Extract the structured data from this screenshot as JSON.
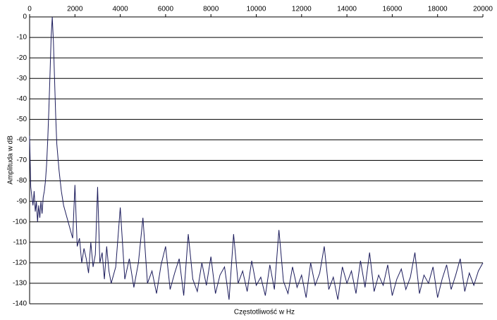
{
  "chart_data": {
    "type": "line",
    "x_label": "Częstotliwość w Hz",
    "y_label": "Amplituda w dB",
    "xlim": [
      0,
      20000
    ],
    "ylim": [
      -140,
      0
    ],
    "xticks": [
      0,
      2000,
      4000,
      6000,
      8000,
      10000,
      12000,
      14000,
      16000,
      18000,
      20000
    ],
    "yticks": [
      0,
      -10,
      -20,
      -30,
      -40,
      -50,
      -60,
      -70,
      -80,
      -90,
      -100,
      -110,
      -120,
      -130,
      -140
    ],
    "grid": true,
    "series": [
      {
        "color": "#1c1c5c",
        "x": [
          0,
          50,
          100,
          150,
          200,
          250,
          300,
          350,
          400,
          450,
          500,
          550,
          600,
          650,
          700,
          750,
          800,
          850,
          900,
          950,
          1000,
          1050,
          1100,
          1150,
          1200,
          1300,
          1400,
          1500,
          1600,
          1700,
          1800,
          1900,
          2000,
          2100,
          2200,
          2300,
          2400,
          2500,
          2600,
          2700,
          2800,
          2900,
          3000,
          3100,
          3200,
          3300,
          3400,
          3500,
          3600,
          3800,
          4000,
          4200,
          4400,
          4600,
          4800,
          5000,
          5200,
          5400,
          5600,
          5800,
          6000,
          6200,
          6400,
          6600,
          6800,
          7000,
          7200,
          7400,
          7600,
          7800,
          8000,
          8200,
          8400,
          8600,
          8800,
          9000,
          9200,
          9400,
          9600,
          9800,
          10000,
          10200,
          10400,
          10600,
          10800,
          11000,
          11200,
          11400,
          11600,
          11800,
          12000,
          12200,
          12400,
          12600,
          12800,
          13000,
          13200,
          13400,
          13600,
          13800,
          14000,
          14200,
          14400,
          14600,
          14800,
          15000,
          15200,
          15400,
          15600,
          15800,
          16000,
          16200,
          16400,
          16600,
          16800,
          17000,
          17200,
          17400,
          17600,
          17800,
          18000,
          18200,
          18400,
          18600,
          18800,
          19000,
          19200,
          19400,
          19600,
          19800,
          20000
        ],
        "values": [
          -58,
          -83,
          -88,
          -92,
          -85,
          -95,
          -90,
          -100,
          -92,
          -98,
          -90,
          -96,
          -88,
          -85,
          -80,
          -72,
          -60,
          -45,
          -28,
          -10,
          0,
          -12,
          -30,
          -48,
          -62,
          -75,
          -85,
          -92,
          -96,
          -100,
          -104,
          -108,
          -82,
          -112,
          -108,
          -120,
          -113,
          -118,
          -125,
          -110,
          -122,
          -116,
          -83,
          -120,
          -115,
          -128,
          -112,
          -124,
          -130,
          -122,
          -93,
          -128,
          -118,
          -132,
          -120,
          -98,
          -130,
          -124,
          -135,
          -121,
          -112,
          -133,
          -125,
          -118,
          -136,
          -106,
          -128,
          -134,
          -120,
          -131,
          -117,
          -135,
          -126,
          -122,
          -138,
          -106,
          -130,
          -124,
          -134,
          -119,
          -131,
          -127,
          -136,
          -121,
          -133,
          -104,
          -129,
          -135,
          -122,
          -132,
          -126,
          -137,
          -120,
          -131,
          -125,
          -112,
          -133,
          -127,
          -138,
          -122,
          -130,
          -124,
          -135,
          -119,
          -132,
          -115,
          -134,
          -126,
          -131,
          -121,
          -136,
          -128,
          -123,
          -133,
          -127,
          -115,
          -135,
          -126,
          -130,
          -122,
          -137,
          -128,
          -121,
          -133,
          -126,
          -118,
          -134,
          -125,
          -131,
          -124,
          -120
        ]
      }
    ]
  }
}
